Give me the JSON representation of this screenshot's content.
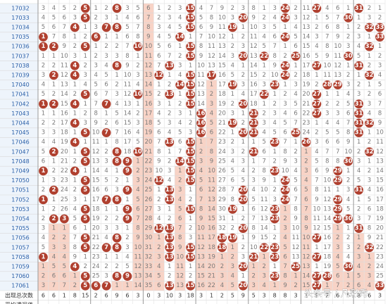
{
  "table": {
    "issues": [
      "17032",
      "17033",
      "17034",
      "17035",
      "17036",
      "17037",
      "17038",
      "17039",
      "17040",
      "17041",
      "17042",
      "17043",
      "17044",
      "17045",
      "17046",
      "17047",
      "17048",
      "17049",
      "17050",
      "17051",
      "17052",
      "17053",
      "17054",
      "17055",
      "17056",
      "17057",
      "17058",
      "17059",
      "17060",
      "17061"
    ],
    "ball_color": "#b0402f",
    "layer_color": "#f8d3c6",
    "columns": [
      {
        "values": [
          3,
          4,
          5,
          1,
          1,
          1,
          2,
          3,
          4,
          5,
          1,
          1,
          2,
          3,
          4,
          5,
          6,
          1,
          1,
          2,
          1,
          1,
          2,
          3,
          4,
          5,
          1,
          1,
          2,
          3
        ],
        "hits": [
          3,
          4,
          10,
          17,
          20,
          26
        ]
      },
      {
        "values": [
          4,
          5,
          6,
          7,
          2,
          1,
          2,
          2,
          1,
          2,
          2,
          1,
          2,
          3,
          4,
          2,
          1,
          2,
          3,
          2,
          1,
          2,
          2,
          1,
          2,
          3,
          4,
          5,
          6,
          7
        ],
        "hits": [
          4,
          7,
          10,
          15,
          19,
          22
        ]
      },
      {
        "values": [
          5,
          6,
          7,
          8,
          9,
          10,
          11,
          12,
          13,
          14,
          15,
          16,
          17,
          18,
          19,
          20,
          21,
          22,
          23,
          24,
          25,
          26,
          3,
          1,
          2,
          3,
          4,
          5,
          6,
          7
        ],
        "hits": [
          22
        ]
      },
      {
        "values": [
          2,
          3,
          4,
          1,
          2,
          3,
          4,
          4,
          1,
          2,
          4,
          1,
          4,
          1,
          4,
          1,
          2,
          4,
          1,
          2,
          3,
          4,
          5,
          6,
          7,
          8,
          9,
          4,
          1,
          2
        ],
        "hits": [
          2,
          6,
          7,
          10,
          12,
          14,
          17,
          27
        ]
      },
      {
        "values": [
          5,
          5,
          1,
          2,
          5,
          1,
          2,
          3,
          4,
          5,
          1,
          2,
          3,
          5,
          1,
          5,
          5,
          1,
          5,
          5,
          1,
          5,
          5,
          1,
          5,
          5,
          1,
          2,
          5,
          5
        ],
        "hits": [
          0,
          1,
          4,
          9,
          13,
          15,
          16,
          18,
          19,
          21,
          22,
          24,
          25,
          28,
          29
        ]
      },
      {
        "values": [
          1,
          2,
          3,
          6,
          1,
          2,
          3,
          4,
          5,
          6,
          7,
          8,
          9,
          10,
          11,
          12,
          13,
          14,
          15,
          16,
          17,
          18,
          19,
          20,
          21,
          22,
          23,
          24,
          25,
          6
        ],
        "hits": [
          3,
          29
        ]
      },
      {
        "values": [
          2,
          3,
          7,
          1,
          2,
          3,
          4,
          5,
          6,
          7,
          7,
          1,
          2,
          7,
          1,
          2,
          3,
          4,
          5,
          6,
          7,
          1,
          2,
          3,
          4,
          7,
          1,
          2,
          3,
          7
        ],
        "hits": [
          2,
          10,
          13,
          20,
          25,
          29
        ]
      },
      {
        "values": [
          8,
          1,
          8,
          1,
          2,
          3,
          8,
          1,
          2,
          3,
          4,
          5,
          6,
          7,
          8,
          8,
          8,
          1,
          2,
          3,
          8,
          1,
          2,
          3,
          8,
          8,
          1,
          2,
          8,
          1
        ],
        "hits": [
          0,
          2,
          6,
          15,
          16,
          20,
          24,
          25,
          28
        ]
      },
      {
        "values": [
          3,
          4,
          5,
          6,
          7,
          8,
          9,
          10,
          11,
          12,
          13,
          14,
          15,
          16,
          17,
          18,
          9,
          9,
          1,
          9,
          1,
          9,
          9,
          1,
          2,
          3,
          4,
          5,
          9,
          1
        ],
        "hits": [
          16,
          17,
          19,
          21,
          22,
          28
        ]
      },
      {
        "values": [
          5,
          6,
          7,
          8,
          10,
          1,
          2,
          3,
          4,
          10,
          1,
          2,
          3,
          4,
          5,
          10,
          1,
          2,
          3,
          4,
          5,
          6,
          7,
          8,
          9,
          10,
          11,
          12,
          13,
          14
        ],
        "hits": [
          4,
          9,
          15
        ]
      },
      {
        "values": [
          6,
          7,
          8,
          9,
          10,
          11,
          12,
          13,
          14,
          15,
          16,
          17,
          18,
          19,
          20,
          21,
          22,
          23,
          24,
          25,
          26,
          27,
          28,
          29,
          30,
          31,
          32,
          33,
          34,
          35
        ],
        "hits": []
      },
      {
        "values": [
          1,
          2,
          3,
          4,
          5,
          6,
          7,
          12,
          1,
          2,
          3,
          4,
          5,
          6,
          7,
          8,
          9,
          10,
          12,
          1,
          2,
          3,
          4,
          12,
          1,
          2,
          3,
          4,
          5,
          6
        ],
        "hits": [
          7,
          18,
          23
        ]
      },
      {
        "values": [
          2,
          3,
          4,
          5,
          6,
          7,
          13,
          1,
          2,
          13,
          1,
          2,
          3,
          4,
          13,
          1,
          2,
          3,
          4,
          13,
          13,
          1,
          2,
          13,
          13,
          13,
          13,
          1,
          2,
          13
        ],
        "hits": [
          6,
          9,
          14,
          19,
          20,
          23,
          24,
          25,
          26,
          29
        ]
      },
      {
        "values": [
          3,
          4,
          5,
          14,
          1,
          2,
          3,
          4,
          14,
          1,
          2,
          3,
          4,
          5,
          6,
          7,
          14,
          1,
          2,
          3,
          4,
          5,
          6,
          7,
          8,
          9,
          10,
          11,
          12,
          13
        ],
        "hits": [
          3,
          8,
          16
        ]
      },
      {
        "values": [
          15,
          15,
          15,
          1,
          15,
          15,
          1,
          15,
          15,
          15,
          15,
          1,
          2,
          3,
          15,
          15,
          15,
          15,
          15,
          1,
          2,
          15,
          1,
          2,
          3,
          15,
          15,
          1,
          2,
          15
        ],
        "hits": [
          0,
          1,
          2,
          4,
          5,
          7,
          8,
          9,
          10,
          14,
          15,
          16,
          17,
          18,
          21,
          25,
          26,
          29
        ]
      },
      {
        "values": [
          4,
          5,
          6,
          7,
          8,
          9,
          10,
          11,
          12,
          13,
          14,
          16,
          16,
          16,
          1,
          2,
          3,
          4,
          5,
          6,
          7,
          8,
          9,
          10,
          11,
          12,
          13,
          14,
          15,
          16
        ],
        "hits": [
          11,
          12,
          13
        ]
      },
      {
        "values": [
          7,
          8,
          9,
          10,
          11,
          12,
          13,
          17,
          1,
          2,
          3,
          4,
          5,
          6,
          7,
          8,
          9,
          10,
          11,
          12,
          13,
          14,
          15,
          16,
          17,
          18,
          19,
          20,
          21,
          22
        ],
        "hits": [
          7
        ]
      },
      {
        "values": [
          9,
          10,
          11,
          12,
          13,
          14,
          15,
          16,
          17,
          18,
          19,
          20,
          21,
          22,
          23,
          24,
          25,
          26,
          27,
          28,
          29,
          30,
          31,
          32,
          18,
          18,
          1,
          2,
          3,
          4
        ],
        "hits": [
          24,
          25
        ]
      },
      {
        "values": [
          2,
          3,
          19,
          1,
          2,
          3,
          4,
          5,
          19,
          1,
          2,
          3,
          19,
          1,
          2,
          3,
          4,
          5,
          6,
          7,
          8,
          19,
          1,
          2,
          19,
          1,
          2,
          3,
          4,
          5
        ],
        "hits": [
          2,
          8,
          12,
          21,
          24
        ]
      },
      {
        "values": [
          3,
          20,
          1,
          2,
          3,
          20,
          1,
          2,
          3,
          4,
          20,
          1,
          2,
          20,
          1,
          2,
          3,
          4,
          5,
          20,
          20,
          1,
          2,
          20,
          1,
          2,
          3,
          20,
          1,
          20
        ],
        "hits": [
          1,
          5,
          10,
          13,
          19,
          20,
          23,
          27,
          29
        ]
      },
      {
        "values": [
          8,
          9,
          10,
          11,
          12,
          13,
          14,
          15,
          16,
          17,
          18,
          21,
          21,
          21,
          1,
          21,
          1,
          2,
          3,
          4,
          5,
          6,
          7,
          8,
          9,
          10,
          21,
          1,
          2,
          3
        ],
        "hits": [
          11,
          12,
          13,
          15,
          26
        ]
      },
      {
        "values": [
          1,
          2,
          3,
          4,
          5,
          22,
          1,
          2,
          3,
          22,
          1,
          2,
          3,
          4,
          5,
          6,
          7,
          8,
          9,
          10,
          11,
          12,
          13,
          14,
          15,
          22,
          1,
          2,
          3,
          4
        ],
        "hits": [
          5,
          9,
          25
        ]
      },
      {
        "values": [
          3,
          4,
          5,
          6,
          7,
          8,
          9,
          10,
          23,
          1,
          2,
          3,
          4,
          5,
          23,
          1,
          2,
          23,
          1,
          2,
          3,
          23,
          23,
          1,
          2,
          23,
          23,
          1,
          23,
          1
        ],
        "hits": [
          8,
          14,
          17,
          21,
          22,
          25,
          26,
          28
        ]
      },
      {
        "values": [
          24,
          24,
          1,
          24,
          1,
          2,
          24,
          24,
          1,
          2,
          3,
          4,
          5,
          6,
          7,
          8,
          9,
          10,
          24,
          24,
          24,
          1,
          2,
          3,
          4,
          5,
          6,
          7,
          8,
          9
        ],
        "hits": [
          0,
          1,
          3,
          6,
          7,
          18,
          19,
          20
        ]
      },
      {
        "values": [
          2,
          3,
          4,
          5,
          6,
          25,
          1,
          2,
          3,
          4,
          5,
          6,
          7,
          25,
          1,
          2,
          3,
          4,
          5,
          6,
          7,
          8,
          9,
          10,
          11,
          12,
          13,
          25,
          1,
          2
        ],
        "hits": [
          5,
          13,
          27
        ]
      },
      {
        "values": [
          11,
          12,
          13,
          14,
          15,
          16,
          17,
          18,
          19,
          20,
          21,
          22,
          23,
          24,
          26,
          1,
          2,
          3,
          4,
          5,
          6,
          7,
          8,
          9,
          10,
          11,
          12,
          13,
          14,
          15
        ],
        "hits": [
          14
        ]
      },
      {
        "values": [
          27,
          1,
          2,
          3,
          4,
          5,
          27,
          1,
          2,
          27,
          27,
          27,
          1,
          2,
          3,
          4,
          5,
          6,
          7,
          8,
          9,
          10,
          11,
          12,
          27,
          1,
          27,
          1,
          27,
          27
        ],
        "hits": [
          0,
          6,
          9,
          10,
          11,
          24,
          26,
          28,
          29
        ]
      },
      {
        "values": [
          4,
          5,
          6,
          7,
          8,
          9,
          10,
          11,
          28,
          1,
          2,
          3,
          4,
          5,
          6,
          7,
          8,
          9,
          10,
          11,
          12,
          13,
          14,
          15,
          16,
          17,
          18,
          19,
          28,
          1
        ],
        "hits": [
          8,
          28
        ]
      },
      {
        "values": [
          6,
          7,
          8,
          9,
          10,
          11,
          12,
          13,
          29,
          1,
          2,
          3,
          4,
          5,
          6,
          7,
          8,
          29,
          29,
          1,
          29,
          29,
          29,
          1,
          2,
          3,
          4,
          5,
          6,
          7
        ],
        "hits": [
          8,
          17,
          18,
          20,
          21,
          22
        ]
      },
      {
        "values": [
          1,
          30,
          1,
          2,
          3,
          30,
          1,
          2,
          3,
          4,
          5,
          6,
          7,
          8,
          9,
          10,
          30,
          1,
          2,
          3,
          4,
          5,
          30,
          1,
          2,
          3,
          4,
          30,
          1,
          2
        ],
        "hits": [
          1,
          5,
          16,
          22,
          27
        ]
      },
      {
        "values": [
          31,
          1,
          2,
          3,
          4,
          5,
          31,
          1,
          2,
          3,
          31,
          31,
          31,
          31,
          1,
          2,
          3,
          4,
          5,
          31,
          1,
          2,
          3,
          31,
          1,
          2,
          3,
          4,
          5,
          6
        ],
        "hits": [
          0,
          6,
          10,
          11,
          12,
          13,
          19,
          23
        ]
      },
      {
        "values": [
          2,
          3,
          32,
          1,
          32,
          1,
          2,
          32,
          1,
          2,
          3,
          4,
          32,
          1,
          2,
          32,
          1,
          2,
          3,
          4,
          5,
          6,
          7,
          8,
          9,
          32,
          1,
          2,
          3,
          4
        ],
        "hits": [
          2,
          4,
          7,
          12,
          15,
          25
        ]
      },
      {
        "values": [
          1,
          2,
          33,
          33,
          1,
          2,
          3,
          4,
          5,
          6,
          7,
          8,
          9,
          10,
          11,
          12,
          13,
          14,
          15,
          16,
          17,
          18,
          19,
          20,
          21,
          22,
          23,
          24,
          25,
          33
        ],
        "hits": [
          2,
          3,
          29
        ]
      }
    ],
    "footer": [
      {
        "label": "出现总次数",
        "values": [
          6,
          6,
          1,
          8,
          15,
          2,
          6,
          9,
          6,
          3,
          0,
          3,
          10,
          3,
          18,
          3,
          1,
          2,
          5,
          9,
          5,
          3,
          8,
          8,
          3,
          1,
          9,
          2,
          6,
          5,
          8,
          6,
          3
        ]
      },
      {
        "label": "平均遗漏值"
      }
    ],
    "watermark": "头条号 / 凡彩秀"
  }
}
